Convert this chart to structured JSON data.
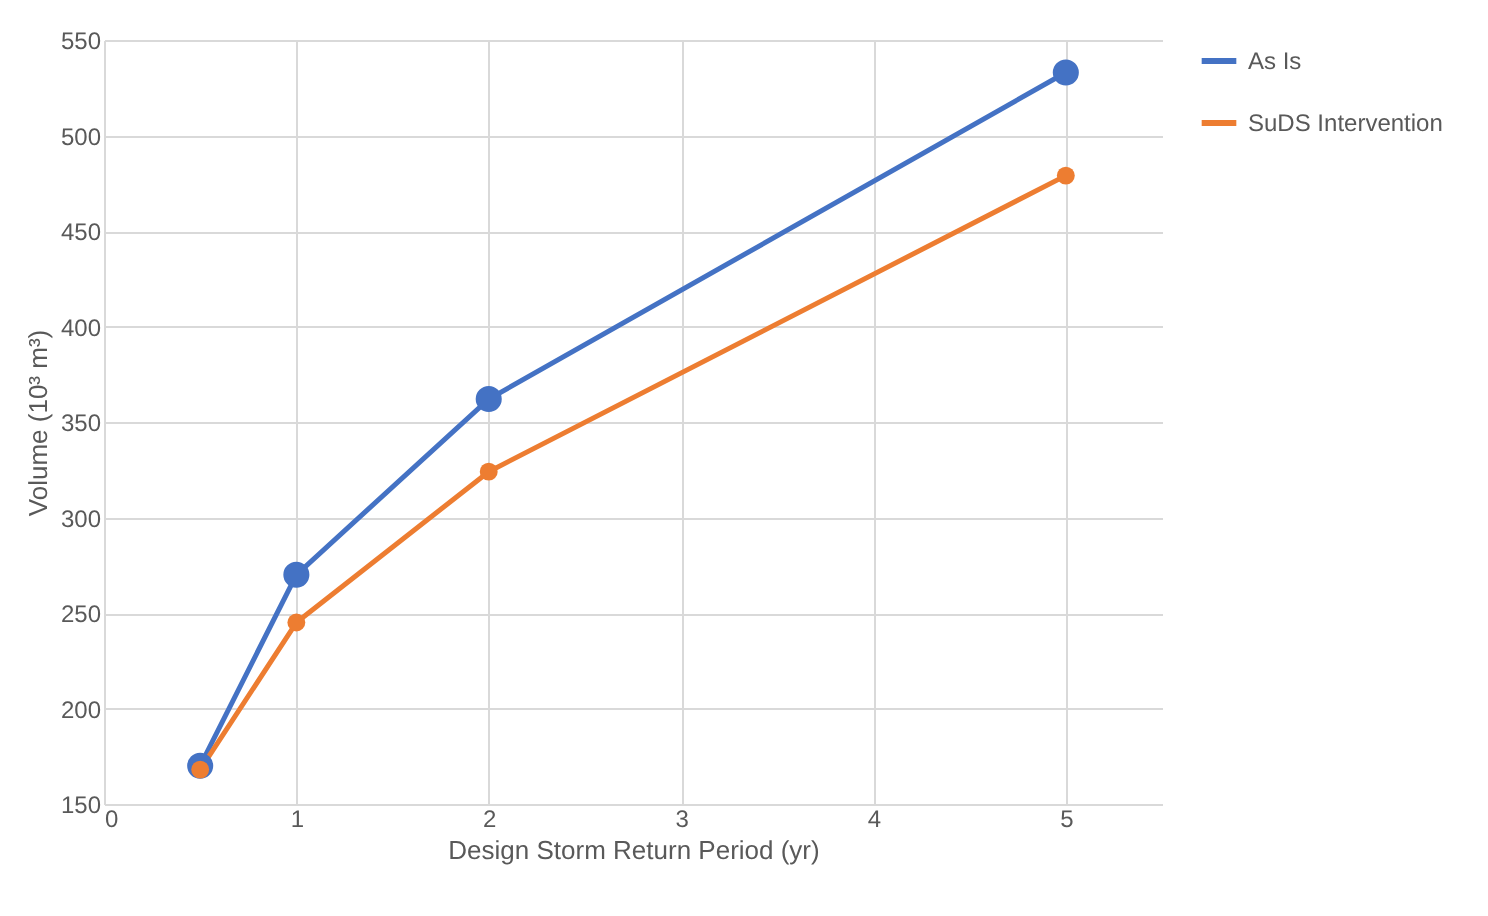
{
  "chart_data": {
    "type": "line",
    "xlabel": "Design Storm Return Period (yr)",
    "ylabel": "Volume (10³ m³)",
    "x": [
      0.5,
      1,
      2,
      5
    ],
    "series": [
      {
        "name": "As Is",
        "color": "#4472c4",
        "values": [
          170,
          270,
          362,
          533
        ]
      },
      {
        "name": "SuDS Intervention",
        "color": "#ed7d31",
        "values": [
          168,
          245,
          324,
          479
        ]
      }
    ],
    "xlim": [
      0,
      5.5
    ],
    "xticks": [
      0,
      1,
      2,
      3,
      4,
      5
    ],
    "ylim": [
      150,
      550
    ],
    "yticks": [
      150,
      200,
      250,
      300,
      350,
      400,
      450,
      500,
      550
    ],
    "grid": true,
    "legend": "right",
    "marker": "circle",
    "line_style": "solid"
  }
}
